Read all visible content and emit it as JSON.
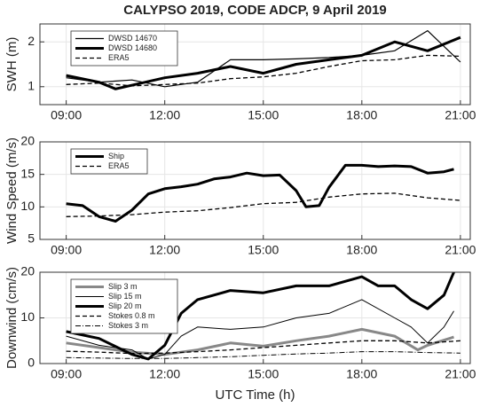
{
  "chart_data": [
    {
      "type": "line",
      "title": "CALYPSO 2019, CODE ADCP, 9 April 2019",
      "y_label": "SWH (m)",
      "xlim": [
        8.2,
        21.3
      ],
      "xticks": [
        {
          "value": 9,
          "label": "09:00"
        },
        {
          "value": 12,
          "label": "12:00"
        },
        {
          "value": 15,
          "label": "15:00"
        },
        {
          "value": 18,
          "label": "18:00"
        },
        {
          "value": 21,
          "label": "21:00"
        }
      ],
      "ylim": [
        0.6,
        2.4
      ],
      "yticks": [
        1,
        2
      ],
      "grid": true,
      "legend": "upper left",
      "series": [
        {
          "name": "DWSD 14670",
          "color": "#000000",
          "line_width": 1.2,
          "dash": "none",
          "x": [
            9,
            10,
            11,
            12,
            13,
            14,
            15,
            16,
            17,
            18,
            19,
            20,
            21
          ],
          "values": [
            1.2,
            1.1,
            1.15,
            1.0,
            1.1,
            1.6,
            1.6,
            1.62,
            1.65,
            1.7,
            1.8,
            2.25,
            1.55
          ]
        },
        {
          "name": "DWSD 14680",
          "color": "#000000",
          "line_width": 3,
          "dash": "none",
          "x": [
            9,
            10,
            10.5,
            12,
            13,
            14,
            15,
            16,
            17,
            18,
            19,
            20,
            21
          ],
          "values": [
            1.25,
            1.1,
            0.95,
            1.2,
            1.3,
            1.45,
            1.3,
            1.5,
            1.6,
            1.7,
            2.0,
            1.8,
            2.1
          ]
        },
        {
          "name": "ERA5",
          "color": "#000000",
          "line_width": 1.3,
          "dash": "5 3",
          "x": [
            9,
            10,
            11,
            12,
            13,
            14,
            15,
            16,
            17,
            18,
            19,
            20,
            21
          ],
          "values": [
            1.05,
            1.08,
            1.02,
            1.05,
            1.08,
            1.18,
            1.22,
            1.3,
            1.45,
            1.58,
            1.6,
            1.7,
            1.68
          ]
        }
      ]
    },
    {
      "type": "line",
      "y_label": "Wind Speed (m/s)",
      "xlim": [
        8.2,
        21.3
      ],
      "xticks": [
        {
          "value": 9,
          "label": "09:00"
        },
        {
          "value": 12,
          "label": "12:00"
        },
        {
          "value": 15,
          "label": "15:00"
        },
        {
          "value": 18,
          "label": "18:00"
        },
        {
          "value": 21,
          "label": "21:00"
        }
      ],
      "ylim": [
        5,
        20
      ],
      "yticks": [
        5,
        10,
        15,
        20
      ],
      "grid": true,
      "legend": "upper left",
      "series": [
        {
          "name": "Ship",
          "color": "#000000",
          "line_width": 3,
          "dash": "none",
          "x": [
            9,
            9.5,
            10,
            10.5,
            11,
            11.5,
            12,
            12.5,
            13,
            13.5,
            14,
            14.5,
            15,
            15.5,
            16,
            16.3,
            16.7,
            17,
            17.5,
            18,
            18.5,
            19,
            19.5,
            20,
            20.5,
            20.8
          ],
          "values": [
            10.5,
            10.2,
            8.5,
            7.8,
            9.5,
            12,
            12.8,
            13.1,
            13.5,
            14.3,
            14.6,
            15.2,
            14.8,
            14.9,
            12.5,
            10.0,
            10.2,
            13,
            16.4,
            16.4,
            16.2,
            16.3,
            16.2,
            15.2,
            15.4,
            15.8
          ]
        },
        {
          "name": "ERA5",
          "color": "#000000",
          "line_width": 1.3,
          "dash": "5 3",
          "x": [
            9,
            10,
            11,
            12,
            13,
            14,
            15,
            16,
            17,
            18,
            19,
            20,
            21
          ],
          "values": [
            8.5,
            8.6,
            8.8,
            9.2,
            9.4,
            9.9,
            10.5,
            10.7,
            11.5,
            12,
            12.1,
            11.4,
            11.0
          ]
        }
      ]
    },
    {
      "type": "line",
      "y_label": "Downwind (cm/s)",
      "x_label": "UTC Time (h)",
      "xlim": [
        8.2,
        21.3
      ],
      "xticks": [
        {
          "value": 9,
          "label": "09:00"
        },
        {
          "value": 12,
          "label": "12:00"
        },
        {
          "value": 15,
          "label": "15:00"
        },
        {
          "value": 18,
          "label": "18:00"
        },
        {
          "value": 21,
          "label": "21:00"
        }
      ],
      "ylim": [
        0,
        20
      ],
      "yticks": [
        0,
        10,
        20
      ],
      "grid": true,
      "legend": "upper left",
      "series": [
        {
          "name": "Slip 3 m",
          "color": "#888888",
          "line_width": 3,
          "dash": "none",
          "x": [
            9,
            10,
            11,
            12,
            13,
            14,
            15,
            16,
            17,
            18,
            19,
            19.7,
            20,
            20.8
          ],
          "values": [
            4.5,
            3.5,
            2.5,
            2,
            3,
            4.5,
            3.8,
            5,
            6,
            7.5,
            6,
            3,
            4,
            5.8
          ]
        },
        {
          "name": "Slip 15 m",
          "color": "#000000",
          "line_width": 1,
          "dash": "none",
          "x": [
            9,
            10,
            11,
            11.5,
            12,
            12.5,
            13,
            14,
            15,
            16,
            17,
            18,
            19,
            19.5,
            20,
            20.5,
            20.8
          ],
          "values": [
            6,
            4,
            3,
            1,
            2,
            6,
            8,
            7.5,
            8,
            10,
            11,
            14,
            10,
            8,
            4.5,
            8,
            11.5
          ]
        },
        {
          "name": "Slip 20 m",
          "color": "#000000",
          "line_width": 3,
          "dash": "none",
          "x": [
            9,
            10,
            11,
            11.5,
            12,
            12.5,
            13,
            14,
            15,
            16,
            17,
            18,
            18.5,
            19,
            19.5,
            20,
            20.5,
            20.8
          ],
          "values": [
            7,
            5.5,
            2,
            1,
            4,
            11,
            14,
            16,
            15.5,
            17,
            17,
            19,
            17,
            17,
            14,
            12,
            15,
            20
          ]
        },
        {
          "name": "Stokes 0.8 m",
          "color": "#000000",
          "line_width": 1.3,
          "dash": "5 3",
          "x": [
            9,
            10,
            11,
            12,
            13,
            14,
            15,
            16,
            17,
            18,
            19,
            20,
            21
          ],
          "values": [
            2.7,
            2.5,
            2.2,
            2.3,
            2.6,
            3,
            3.5,
            4,
            4.5,
            5,
            5,
            4.5,
            5
          ]
        },
        {
          "name": "Stokes 3 m",
          "color": "#000000",
          "line_width": 1,
          "dash": "6 2 1 2",
          "x": [
            9,
            10,
            11,
            12,
            13,
            14,
            15,
            16,
            17,
            18,
            19,
            20,
            21
          ],
          "values": [
            1.3,
            1.2,
            1.1,
            1.1,
            1.3,
            1.5,
            1.8,
            2.1,
            2.3,
            2.6,
            2.6,
            2.4,
            2.3
          ]
        }
      ]
    }
  ]
}
